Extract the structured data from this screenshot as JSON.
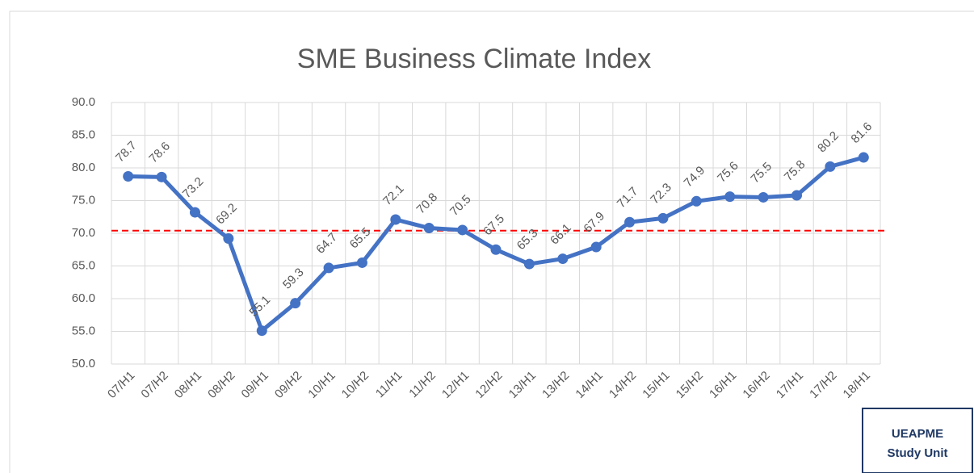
{
  "chart_data": {
    "type": "line",
    "title": "SME Business Climate Index",
    "categories": [
      "07/H1",
      "07/H2",
      "08/H1",
      "08/H2",
      "09/H1",
      "09/H2",
      "10/H1",
      "10/H2",
      "11/H1",
      "11/H2",
      "12/H1",
      "12/H2",
      "13/H1",
      "13/H2",
      "14/H1",
      "14/H2",
      "15/H1",
      "15/H2",
      "16/H1",
      "16/H2",
      "17/H1",
      "17/H2",
      "18/H1"
    ],
    "series": [
      {
        "name": "SME Business Climate Index",
        "color": "#4472c4",
        "values": [
          78.7,
          78.6,
          73.2,
          69.2,
          55.1,
          59.3,
          64.7,
          65.5,
          72.1,
          70.8,
          70.5,
          67.5,
          65.3,
          66.1,
          67.9,
          71.7,
          72.3,
          74.9,
          75.6,
          75.5,
          75.8,
          80.2,
          81.6
        ]
      }
    ],
    "ylim": [
      50,
      90
    ],
    "yticks": [
      {
        "value": 50,
        "label": "50.0"
      },
      {
        "value": 55,
        "label": "55.0"
      },
      {
        "value": 60,
        "label": "60.0"
      },
      {
        "value": 65,
        "label": "65.0"
      },
      {
        "value": 70,
        "label": "70.0"
      },
      {
        "value": 75,
        "label": "75.0"
      },
      {
        "value": 80,
        "label": "80.0"
      },
      {
        "value": 85,
        "label": "85.0"
      },
      {
        "value": 90,
        "label": "90.0"
      }
    ],
    "grid": true,
    "reference_line": {
      "value": 70.4,
      "color": "#ff0000"
    },
    "data_labels": true,
    "annotation": [
      "UEAPME",
      "Study Unit"
    ]
  }
}
